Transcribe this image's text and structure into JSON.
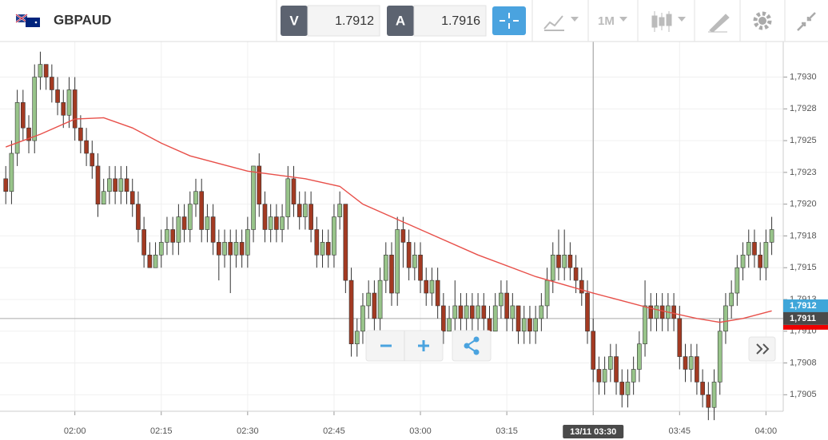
{
  "toolbar": {
    "symbol": "GBPAUD",
    "bid_label": "V",
    "bid": "1.7912",
    "ask_label": "A",
    "ask": "1.7916",
    "timeframe": "1M"
  },
  "chart_data": {
    "type": "candlestick",
    "up_color": "#98c48a",
    "down_color": "#a33a22",
    "x": [
      108,
      109,
      110,
      111,
      112,
      113,
      114,
      115,
      116,
      117,
      118,
      119,
      120,
      121,
      122,
      123,
      124,
      125,
      126,
      127,
      128,
      129,
      130,
      131,
      132,
      133,
      134,
      135,
      136,
      137,
      138,
      139,
      140,
      141,
      142,
      143,
      144,
      145,
      146,
      147,
      148,
      149,
      150,
      151,
      152,
      153,
      154,
      155,
      156,
      157,
      158,
      159,
      160,
      161,
      162,
      163,
      164,
      165,
      166,
      167,
      168,
      169,
      170,
      171,
      172,
      173,
      174,
      175,
      176,
      177,
      178,
      179,
      180,
      181,
      182,
      183,
      184,
      185,
      186,
      187,
      188,
      189,
      190,
      191,
      192,
      193,
      194,
      195,
      196,
      197,
      198,
      199,
      200,
      201,
      202,
      203,
      204,
      205,
      206,
      207,
      208,
      209,
      210,
      211,
      212,
      213,
      214,
      215,
      216,
      217,
      218,
      219,
      220,
      221,
      222,
      223,
      224,
      225,
      226,
      227,
      228,
      229,
      230,
      231,
      232,
      233,
      234,
      235,
      236,
      237,
      238,
      239,
      240,
      241
    ],
    "candles": [
      [
        1.7922,
        1.7923,
        1.792,
        1.7921
      ],
      [
        1.7921,
        1.7925,
        1.792,
        1.7924
      ],
      [
        1.7924,
        1.7929,
        1.7923,
        1.7928
      ],
      [
        1.7928,
        1.7929,
        1.7925,
        1.7926
      ],
      [
        1.7926,
        1.7927,
        1.7924,
        1.7925
      ],
      [
        1.7925,
        1.7931,
        1.7924,
        1.793
      ],
      [
        1.793,
        1.7932,
        1.7929,
        1.7931
      ],
      [
        1.7931,
        1.7931,
        1.7929,
        1.793
      ],
      [
        1.793,
        1.7931,
        1.7928,
        1.7929
      ],
      [
        1.7929,
        1.793,
        1.7927,
        1.7928
      ],
      [
        1.7928,
        1.7929,
        1.7926,
        1.7927
      ],
      [
        1.7927,
        1.793,
        1.7926,
        1.7929
      ],
      [
        1.7929,
        1.793,
        1.7925,
        1.7926
      ],
      [
        1.7926,
        1.7927,
        1.7924,
        1.7925
      ],
      [
        1.7925,
        1.7926,
        1.7923,
        1.7924
      ],
      [
        1.7924,
        1.7925,
        1.7922,
        1.7923
      ],
      [
        1.7923,
        1.7924,
        1.7919,
        1.792
      ],
      [
        1.792,
        1.7922,
        1.792,
        1.7921
      ],
      [
        1.7921,
        1.7923,
        1.792,
        1.7922
      ],
      [
        1.7922,
        1.7923,
        1.792,
        1.7921
      ],
      [
        1.7921,
        1.7923,
        1.792,
        1.7922
      ],
      [
        1.7922,
        1.7923,
        1.792,
        1.7921
      ],
      [
        1.7921,
        1.7922,
        1.7919,
        1.792
      ],
      [
        1.792,
        1.7921,
        1.7917,
        1.7918
      ],
      [
        1.7918,
        1.7919,
        1.7915,
        1.7916
      ],
      [
        1.7916,
        1.7917,
        1.7915,
        1.7915
      ],
      [
        1.7915,
        1.7917,
        1.7915,
        1.7916
      ],
      [
        1.7916,
        1.7918,
        1.7915,
        1.7917
      ],
      [
        1.7917,
        1.7919,
        1.7916,
        1.7918
      ],
      [
        1.7918,
        1.7919,
        1.7916,
        1.7917
      ],
      [
        1.7917,
        1.792,
        1.7916,
        1.7919
      ],
      [
        1.7919,
        1.792,
        1.7917,
        1.7918
      ],
      [
        1.7918,
        1.7921,
        1.7917,
        1.792
      ],
      [
        1.792,
        1.7922,
        1.7919,
        1.7921
      ],
      [
        1.7921,
        1.7922,
        1.7917,
        1.7918
      ],
      [
        1.7918,
        1.792,
        1.7917,
        1.7919
      ],
      [
        1.7919,
        1.792,
        1.7916,
        1.7917
      ],
      [
        1.7917,
        1.7918,
        1.7914,
        1.7916
      ],
      [
        1.7916,
        1.7918,
        1.7915,
        1.7917
      ],
      [
        1.7917,
        1.7918,
        1.7913,
        1.7916
      ],
      [
        1.7916,
        1.7918,
        1.7915,
        1.7917
      ],
      [
        1.7917,
        1.7918,
        1.7915,
        1.7916
      ],
      [
        1.7916,
        1.7919,
        1.7915,
        1.7918
      ],
      [
        1.7918,
        1.7923,
        1.7917,
        1.7923
      ],
      [
        1.7923,
        1.7924,
        1.7919,
        1.792
      ],
      [
        1.792,
        1.7921,
        1.7917,
        1.7918
      ],
      [
        1.7918,
        1.792,
        1.7917,
        1.7919
      ],
      [
        1.7919,
        1.792,
        1.7917,
        1.7918
      ],
      [
        1.7918,
        1.792,
        1.7917,
        1.7919
      ],
      [
        1.7919,
        1.7923,
        1.7918,
        1.7922
      ],
      [
        1.7922,
        1.7923,
        1.7919,
        1.792
      ],
      [
        1.792,
        1.7921,
        1.7918,
        1.7919
      ],
      [
        1.7919,
        1.7921,
        1.7918,
        1.792
      ],
      [
        1.792,
        1.7921,
        1.7917,
        1.7918
      ],
      [
        1.7918,
        1.7919,
        1.7915,
        1.7916
      ],
      [
        1.7916,
        1.7918,
        1.7915,
        1.7917
      ],
      [
        1.7917,
        1.7918,
        1.7915,
        1.7916
      ],
      [
        1.7916,
        1.792,
        1.7915,
        1.7919
      ],
      [
        1.7919,
        1.7921,
        1.7918,
        1.792
      ],
      [
        1.792,
        1.792,
        1.7913,
        1.7914
      ],
      [
        1.7914,
        1.7915,
        1.7908,
        1.7909
      ],
      [
        1.7909,
        1.7911,
        1.7908,
        1.791
      ],
      [
        1.791,
        1.7913,
        1.7909,
        1.7912
      ],
      [
        1.7912,
        1.7914,
        1.7911,
        1.7913
      ],
      [
        1.7913,
        1.7914,
        1.791,
        1.7911
      ],
      [
        1.7911,
        1.7915,
        1.791,
        1.7914
      ],
      [
        1.7914,
        1.7917,
        1.7913,
        1.7916
      ],
      [
        1.7916,
        1.7917,
        1.7912,
        1.7913
      ],
      [
        1.7913,
        1.7919,
        1.7912,
        1.7918
      ],
      [
        1.7918,
        1.7919,
        1.7915,
        1.7917
      ],
      [
        1.7917,
        1.7918,
        1.7914,
        1.7915
      ],
      [
        1.7915,
        1.7917,
        1.7914,
        1.7916
      ],
      [
        1.7916,
        1.7917,
        1.7913,
        1.7914
      ],
      [
        1.7914,
        1.7915,
        1.7912,
        1.7913
      ],
      [
        1.7913,
        1.7915,
        1.7912,
        1.7914
      ],
      [
        1.7914,
        1.7915,
        1.7911,
        1.7912
      ],
      [
        1.7912,
        1.7913,
        1.7909,
        1.791
      ],
      [
        1.791,
        1.7912,
        1.791,
        1.7911
      ],
      [
        1.7911,
        1.7914,
        1.791,
        1.7912
      ],
      [
        1.7912,
        1.7913,
        1.791,
        1.7911
      ],
      [
        1.7911,
        1.7913,
        1.791,
        1.7912
      ],
      [
        1.7912,
        1.7913,
        1.791,
        1.7911
      ],
      [
        1.7911,
        1.7913,
        1.791,
        1.7912
      ],
      [
        1.7912,
        1.7913,
        1.791,
        1.7911
      ],
      [
        1.7911,
        1.7912,
        1.7909,
        1.791
      ],
      [
        1.791,
        1.7913,
        1.791,
        1.7912
      ],
      [
        1.7912,
        1.7914,
        1.7911,
        1.7913
      ],
      [
        1.7913,
        1.7914,
        1.791,
        1.7911
      ],
      [
        1.7911,
        1.7913,
        1.791,
        1.7912
      ],
      [
        1.7912,
        1.7912,
        1.7909,
        1.791
      ],
      [
        1.791,
        1.7912,
        1.7909,
        1.7911
      ],
      [
        1.7911,
        1.7912,
        1.7909,
        1.791
      ],
      [
        1.791,
        1.7912,
        1.7909,
        1.7911
      ],
      [
        1.7911,
        1.7913,
        1.791,
        1.7912
      ],
      [
        1.7912,
        1.7915,
        1.7911,
        1.7914
      ],
      [
        1.7914,
        1.7917,
        1.7913,
        1.7916
      ],
      [
        1.7916,
        1.7918,
        1.7914,
        1.7915
      ],
      [
        1.7915,
        1.7918,
        1.7914,
        1.7916
      ],
      [
        1.7916,
        1.7917,
        1.7914,
        1.7915
      ],
      [
        1.7915,
        1.7916,
        1.7913,
        1.7914
      ],
      [
        1.7914,
        1.7915,
        1.7912,
        1.7913
      ],
      [
        1.7913,
        1.7914,
        1.7909,
        1.791
      ],
      [
        1.791,
        1.7911,
        1.7906,
        1.7907
      ],
      [
        1.7907,
        1.7908,
        1.7905,
        1.7906
      ],
      [
        1.7906,
        1.7908,
        1.7905,
        1.7907
      ],
      [
        1.7907,
        1.7909,
        1.7906,
        1.7908
      ],
      [
        1.7908,
        1.7909,
        1.7905,
        1.7906
      ],
      [
        1.7906,
        1.7907,
        1.7904,
        1.7905
      ],
      [
        1.7905,
        1.7907,
        1.7904,
        1.7906
      ],
      [
        1.7906,
        1.7908,
        1.7905,
        1.7907
      ],
      [
        1.7907,
        1.791,
        1.7906,
        1.7909
      ],
      [
        1.7909,
        1.7914,
        1.7908,
        1.7912
      ],
      [
        1.7912,
        1.7913,
        1.791,
        1.7911
      ],
      [
        1.7911,
        1.7913,
        1.791,
        1.7912
      ],
      [
        1.7912,
        1.7913,
        1.791,
        1.7911
      ],
      [
        1.7911,
        1.7913,
        1.791,
        1.7912
      ],
      [
        1.7912,
        1.7913,
        1.791,
        1.7911
      ],
      [
        1.7911,
        1.7912,
        1.7907,
        1.7908
      ],
      [
        1.7908,
        1.7909,
        1.7906,
        1.7907
      ],
      [
        1.7907,
        1.7909,
        1.7906,
        1.7908
      ],
      [
        1.7908,
        1.7909,
        1.7905,
        1.7906
      ],
      [
        1.7906,
        1.7907,
        1.7904,
        1.7905
      ],
      [
        1.7905,
        1.7906,
        1.7903,
        1.7904
      ],
      [
        1.7904,
        1.7907,
        1.7903,
        1.7906
      ],
      [
        1.7906,
        1.7911,
        1.7905,
        1.791
      ],
      [
        1.791,
        1.7913,
        1.7909,
        1.7912
      ],
      [
        1.7912,
        1.7914,
        1.7911,
        1.7913
      ],
      [
        1.7913,
        1.7916,
        1.7912,
        1.7915
      ],
      [
        1.7915,
        1.7917,
        1.7914,
        1.7916
      ],
      [
        1.7916,
        1.7918,
        1.7915,
        1.7917
      ],
      [
        1.7917,
        1.7918,
        1.7915,
        1.7916
      ],
      [
        1.7916,
        1.7917,
        1.7914,
        1.7915
      ],
      [
        1.7915,
        1.7918,
        1.7914,
        1.7917
      ],
      [
        1.7917,
        1.7919,
        1.7916,
        1.7918
      ]
    ],
    "moving_average": {
      "color": "#e8504a",
      "x": [
        108,
        114,
        120,
        125,
        130,
        135,
        140,
        150,
        160,
        166,
        170,
        180,
        190,
        200,
        210,
        220,
        228,
        232,
        236,
        241
      ],
      "values": [
        1.79245,
        1.79255,
        1.79267,
        1.79268,
        1.7926,
        1.79248,
        1.79238,
        1.79226,
        1.7922,
        1.79214,
        1.792,
        1.7918,
        1.7916,
        1.79143,
        1.7913,
        1.79118,
        1.7911,
        1.79107,
        1.7911,
        1.79116
      ]
    },
    "xlim": [
      107,
      243
    ],
    "xticks": [
      {
        "value": 120,
        "label": "02:00"
      },
      {
        "value": 135,
        "label": "02:15"
      },
      {
        "value": 150,
        "label": "02:30"
      },
      {
        "value": 165,
        "label": "02:45"
      },
      {
        "value": 180,
        "label": "03:00"
      },
      {
        "value": 195,
        "label": "03:15"
      },
      {
        "value": 210,
        "label": "03:30"
      },
      {
        "value": 225,
        "label": "03:45"
      },
      {
        "value": 240,
        "label": "04:00"
      }
    ],
    "ylim": [
      1.79037,
      1.79328
    ],
    "yticks": [
      {
        "value": 1.793,
        "label": "1,7930"
      },
      {
        "value": 1.79275,
        "label": "1,7928"
      },
      {
        "value": 1.7925,
        "label": "1,7925"
      },
      {
        "value": 1.79225,
        "label": "1,7923"
      },
      {
        "value": 1.792,
        "label": "1,7920"
      },
      {
        "value": 1.79175,
        "label": "1,7918"
      },
      {
        "value": 1.7915,
        "label": "1,7915"
      },
      {
        "value": 1.79125,
        "label": "1,7913"
      },
      {
        "value": 1.791,
        "label": "1,7910"
      },
      {
        "value": 1.79075,
        "label": "1,7908"
      },
      {
        "value": 1.7905,
        "label": "1,7905"
      }
    ],
    "grid": true,
    "price_labels": [
      {
        "value": 1.7912,
        "label": "1,7912",
        "color": "#3fa6d9"
      },
      {
        "value": 1.7911,
        "label": "1,7911",
        "color": "#4a4a4a"
      }
    ],
    "crosshair": {
      "x": 210,
      "y": 1.7911,
      "label": "13/11 03:30"
    }
  }
}
